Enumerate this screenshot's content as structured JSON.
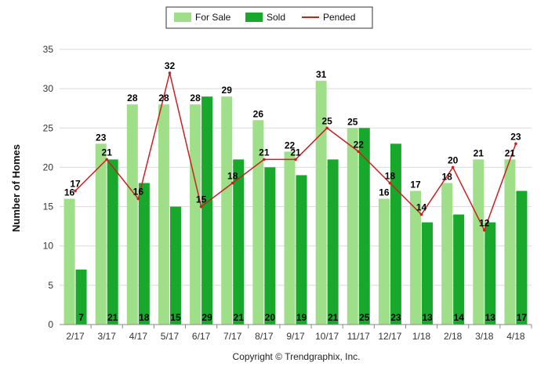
{
  "chart_data": {
    "type": "bar",
    "categories": [
      "2/17",
      "3/17",
      "4/17",
      "5/17",
      "6/17",
      "7/17",
      "8/17",
      "9/17",
      "10/17",
      "11/17",
      "12/17",
      "1/18",
      "2/18",
      "3/18",
      "4/18"
    ],
    "series": [
      {
        "name": "For Sale",
        "type": "bar",
        "color": "#9fdf8a",
        "values": [
          16,
          23,
          28,
          28,
          28,
          29,
          26,
          22,
          31,
          25,
          16,
          17,
          18,
          21,
          21
        ]
      },
      {
        "name": "Sold",
        "type": "bar",
        "color": "#18a82c",
        "values": [
          7,
          21,
          18,
          15,
          29,
          21,
          20,
          19,
          21,
          25,
          23,
          13,
          14,
          13,
          17
        ]
      },
      {
        "name": "Pended",
        "type": "line",
        "color": "#cc1f1f",
        "values": [
          17,
          21,
          16,
          32,
          15,
          18,
          21,
          21,
          25,
          22,
          18,
          14,
          20,
          12,
          23
        ]
      }
    ],
    "title": "",
    "xlabel": "",
    "ylabel": "Number of Homes",
    "ylim": [
      0,
      35
    ],
    "yticks": [
      0,
      5,
      10,
      15,
      20,
      25,
      30,
      35
    ],
    "grid": true,
    "legend_position": "top-center"
  },
  "footer": {
    "copyright": "Copyright © Trendgraphix, Inc."
  }
}
